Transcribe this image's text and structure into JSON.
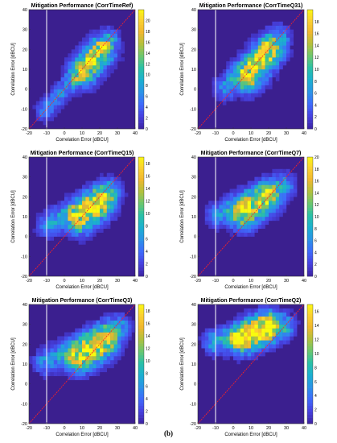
{
  "figure_label": "(b)",
  "shared_axes": {
    "xlabel": "Correlation Error [dBCU]",
    "ylabel": "Correlation Error [dBCU]",
    "xlim": [
      -20,
      40
    ],
    "ylim": [
      -20,
      40
    ],
    "xticks": [
      -20,
      -10,
      0,
      10,
      20,
      30,
      40
    ],
    "yticks": [
      -20,
      -10,
      0,
      10,
      20,
      30,
      40
    ],
    "reference_vline_x": -10,
    "identity_line": true,
    "grid": false
  },
  "colors": {
    "background": "#3b1f8f",
    "colormap": [
      "#3e26a8",
      "#4743e2",
      "#3e6cfb",
      "#2a94e6",
      "#1bb0cf",
      "#2bc0a6",
      "#6cc66e",
      "#b3c03d",
      "#f0b72e",
      "#fbd130",
      "#f9fb0e"
    ],
    "identity_line": "#ff2222",
    "vline": "#ffffff"
  },
  "chart_data": [
    {
      "type": "heatmap",
      "title": "Mitigation Performance (CorrTimeRef)",
      "xlabel": "Correlation Error [dBCU]",
      "ylabel": "Correlation Error [dBCU]",
      "xlim": [
        -20,
        40
      ],
      "ylim": [
        -20,
        40
      ],
      "colorbar": {
        "min": 0,
        "max": 22,
        "ticks": [
          0,
          2,
          4,
          6,
          8,
          10,
          12,
          14,
          16,
          18,
          20
        ]
      },
      "clusters": [
        {
          "x": [
            -12,
            25
          ],
          "y": [
            -12,
            25
          ],
          "spread": 3,
          "intensity": 6
        },
        {
          "x": [
            10,
            20
          ],
          "y": [
            8,
            18
          ],
          "spread": 5,
          "intensity": 14
        }
      ]
    },
    {
      "type": "heatmap",
      "title": "Mitigation Performance (CorrTimeQ31)",
      "xlabel": "Correlation Error [dBCU]",
      "ylabel": "Correlation Error [dBCU]",
      "xlim": [
        -20,
        40
      ],
      "ylim": [
        -20,
        40
      ],
      "colorbar": {
        "min": 0,
        "max": 20,
        "ticks": [
          0,
          2,
          4,
          6,
          8,
          10,
          12,
          14,
          16,
          18
        ]
      },
      "clusters": [
        {
          "x": [
            -5,
            25
          ],
          "y": [
            0,
            25
          ],
          "spread": 4,
          "intensity": 6
        },
        {
          "x": [
            8,
            20
          ],
          "y": [
            5,
            18
          ],
          "spread": 5,
          "intensity": 13
        }
      ]
    },
    {
      "type": "heatmap",
      "title": "Mitigation Performance (CorrTimeQ15)",
      "xlabel": "Correlation Error [dBCU]",
      "ylabel": "Correlation Error [dBCU]",
      "xlim": [
        -20,
        40
      ],
      "ylim": [
        -20,
        40
      ],
      "colorbar": {
        "min": 0,
        "max": 19,
        "ticks": [
          0,
          2,
          4,
          6,
          8,
          10,
          12,
          14,
          16,
          18
        ]
      },
      "clusters": [
        {
          "x": [
            -10,
            25
          ],
          "y": [
            5,
            22
          ],
          "spread": 4,
          "intensity": 6
        },
        {
          "x": [
            8,
            20
          ],
          "y": [
            8,
            16
          ],
          "spread": 5,
          "intensity": 14
        }
      ]
    },
    {
      "type": "heatmap",
      "title": "Mitigation Performance (CorrTimeQ7)",
      "xlabel": "Correlation Error [dBCU]",
      "ylabel": "Correlation Error [dBCU]",
      "xlim": [
        -20,
        40
      ],
      "ylim": [
        -20,
        40
      ],
      "colorbar": {
        "min": 0,
        "max": 20,
        "ticks": [
          0,
          2,
          4,
          6,
          8,
          10,
          12,
          14,
          16,
          18,
          20
        ]
      },
      "clusters": [
        {
          "x": [
            -10,
            28
          ],
          "y": [
            10,
            25
          ],
          "spread": 4,
          "intensity": 6
        },
        {
          "x": [
            5,
            18
          ],
          "y": [
            10,
            18
          ],
          "spread": 5,
          "intensity": 13
        }
      ]
    },
    {
      "type": "heatmap",
      "title": "Mitigation Performance (CorrTimeQ3)",
      "xlabel": "Correlation Error [dBCU]",
      "ylabel": "Correlation Error [dBCU]",
      "xlim": [
        -20,
        40
      ],
      "ylim": [
        -20,
        40
      ],
      "colorbar": {
        "min": 0,
        "max": 19,
        "ticks": [
          0,
          2,
          4,
          6,
          8,
          10,
          12,
          14,
          16,
          18
        ]
      },
      "clusters": [
        {
          "x": [
            -12,
            30
          ],
          "y": [
            10,
            28
          ],
          "spread": 4,
          "intensity": 6
        },
        {
          "x": [
            8,
            22
          ],
          "y": [
            12,
            20
          ],
          "spread": 5,
          "intensity": 14
        }
      ]
    },
    {
      "type": "heatmap",
      "title": "Mitigation Performance (CorrTimeQ2)",
      "xlabel": "Correlation Error [dBCU]",
      "ylabel": "Correlation Error [dBCU]",
      "xlim": [
        -20,
        40
      ],
      "ylim": [
        -20,
        40
      ],
      "colorbar": {
        "min": 0,
        "max": 17,
        "ticks": [
          0,
          2,
          4,
          6,
          8,
          10,
          12,
          14,
          16
        ]
      },
      "clusters": [
        {
          "x": [
            -12,
            28
          ],
          "y": [
            20,
            28
          ],
          "spread": 4,
          "intensity": 6
        },
        {
          "x": [
            5,
            18
          ],
          "y": [
            22,
            28
          ],
          "spread": 5,
          "intensity": 14
        }
      ]
    }
  ]
}
